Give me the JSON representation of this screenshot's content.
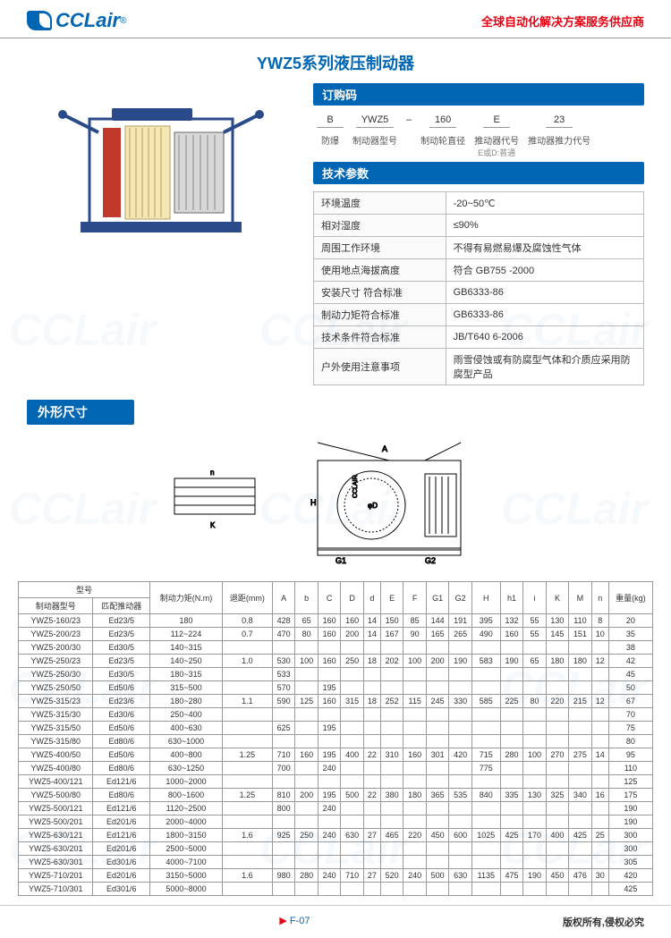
{
  "header": {
    "logo_text": "CCLair",
    "logo_r": "®",
    "tagline": "全球自动化解决方案服务供应商"
  },
  "main_title": "YWZ5系列液压制动器",
  "order_section": {
    "title": "订购码",
    "items": [
      {
        "code": "B",
        "label": "防爆",
        "sub": ""
      },
      {
        "code": "YWZ5",
        "label": "制动器型号",
        "sub": ""
      },
      {
        "code": "160",
        "label": "制动轮直径",
        "sub": ""
      },
      {
        "code": "E",
        "label": "推动器代号",
        "sub": "E或D:普通"
      },
      {
        "code": "23",
        "label": "推动器推力代号",
        "sub": ""
      }
    ],
    "dash": "–"
  },
  "spec_section": {
    "title": "技术参数",
    "rows": [
      {
        "k": "环境温度",
        "v": "-20~50℃"
      },
      {
        "k": "相对湿度",
        "v": "≤90%"
      },
      {
        "k": "周围工作环境",
        "v": "不得有易燃易爆及腐蚀性气体"
      },
      {
        "k": "使用地点海拔高度",
        "v": "符合 GB755 -2000"
      },
      {
        "k": "安装尺寸 符合标准",
        "v": "GB6333-86"
      },
      {
        "k": "制动力矩符合标准",
        "v": "GB6333-86"
      },
      {
        "k": "技术条件符合标准",
        "v": "JB/T640 6-2006"
      },
      {
        "k": "户外使用注意事项",
        "v": "雨雪侵蚀或有防腐型气体和介质应采用防腐型产品"
      }
    ]
  },
  "dims_title": "外形尺寸",
  "dim_table": {
    "header_group": "型号",
    "headers": [
      "制动器型号",
      "匹配推动器",
      "制动力矩(N.m)",
      "退距(mm)",
      "A",
      "b",
      "C",
      "D",
      "d",
      "E",
      "F",
      "G1",
      "G2",
      "H",
      "h1",
      "i",
      "K",
      "M",
      "n",
      "重量(kg)"
    ],
    "rows": [
      [
        "YWZ5-160/23",
        "Ed23/5",
        "180",
        "0.8",
        "428",
        "65",
        "160",
        "160",
        "14",
        "150",
        "85",
        "144",
        "191",
        "395",
        "132",
        "55",
        "130",
        "110",
        "8",
        "20"
      ],
      [
        "YWZ5-200/23",
        "Ed23/5",
        "112~224",
        "0.7",
        "470",
        "80",
        "160",
        "200",
        "14",
        "167",
        "90",
        "165",
        "265",
        "490",
        "160",
        "55",
        "145",
        "151",
        "10",
        "35"
      ],
      [
        "YWZ5-200/30",
        "Ed30/5",
        "140~315",
        "",
        "",
        "",
        "",
        "",
        "",
        "",
        "",
        "",
        "",
        "",
        "",
        "",
        "",
        "",
        "",
        "38"
      ],
      [
        "YWZ5-250/23",
        "Ed23/5",
        "140~250",
        "1.0",
        "530",
        "100",
        "160",
        "250",
        "18",
        "202",
        "100",
        "200",
        "190",
        "583",
        "190",
        "65",
        "180",
        "180",
        "12",
        "42"
      ],
      [
        "YWZ5-250/30",
        "Ed30/5",
        "180~315",
        "",
        "533",
        "",
        "",
        "",
        "",
        "",
        "",
        "",
        "",
        "",
        "",
        "",
        "",
        "",
        "",
        "45"
      ],
      [
        "YWZ5-250/50",
        "Ed50/6",
        "315~500",
        "",
        "570",
        "",
        "195",
        "",
        "",
        "",
        "",
        "",
        "",
        "",
        "",
        "",
        "",
        "",
        "",
        "50"
      ],
      [
        "YWZ5-315/23",
        "Ed23/6",
        "180~280",
        "1.1",
        "590",
        "125",
        "160",
        "315",
        "18",
        "252",
        "115",
        "245",
        "330",
        "585",
        "225",
        "80",
        "220",
        "215",
        "12",
        "67"
      ],
      [
        "YWZ5-315/30",
        "Ed30/6",
        "250~400",
        "",
        "",
        "",
        "",
        "",
        "",
        "",
        "",
        "",
        "",
        "",
        "",
        "",
        "",
        "",
        "",
        "70"
      ],
      [
        "YWZ5-315/50",
        "Ed50/6",
        "400~630",
        "",
        "625",
        "",
        "195",
        "",
        "",
        "",
        "",
        "",
        "",
        "",
        "",
        "",
        "",
        "",
        "",
        "75"
      ],
      [
        "YWZ5-315/80",
        "Ed80/6",
        "630~1000",
        "",
        "",
        "",
        "",
        "",
        "",
        "",
        "",
        "",
        "",
        "",
        "",
        "",
        "",
        "",
        "",
        "80"
      ],
      [
        "YWZ5-400/50",
        "Ed50/6",
        "400~800",
        "1.25",
        "710",
        "160",
        "195",
        "400",
        "22",
        "310",
        "160",
        "301",
        "420",
        "715",
        "280",
        "100",
        "270",
        "275",
        "14",
        "95"
      ],
      [
        "YWZ5-400/80",
        "Ed80/6",
        "630~1250",
        "",
        "700",
        "",
        "240",
        "",
        "",
        "",
        "",
        "",
        "",
        "775",
        "",
        "",
        "",
        "",
        "",
        "110"
      ],
      [
        "YWZ5-400/121",
        "Ed121/6",
        "1000~2000",
        "",
        "",
        "",
        "",
        "",
        "",
        "",
        "",
        "",
        "",
        "",
        "",
        "",
        "",
        "",
        "",
        "125"
      ],
      [
        "YWZ5-500/80",
        "Ed80/6",
        "800~1600",
        "1.25",
        "810",
        "200",
        "195",
        "500",
        "22",
        "380",
        "180",
        "365",
        "535",
        "840",
        "335",
        "130",
        "325",
        "340",
        "16",
        "175"
      ],
      [
        "YWZ5-500/121",
        "Ed121/6",
        "1120~2500",
        "",
        "800",
        "",
        "240",
        "",
        "",
        "",
        "",
        "",
        "",
        "",
        "",
        "",
        "",
        "",
        "",
        "190"
      ],
      [
        "YWZ5-500/201",
        "Ed201/6",
        "2000~4000",
        "",
        "",
        "",
        "",
        "",
        "",
        "",
        "",
        "",
        "",
        "",
        "",
        "",
        "",
        "",
        "",
        "190"
      ],
      [
        "YWZ5-630/121",
        "Ed121/6",
        "1800~3150",
        "1.6",
        "925",
        "250",
        "240",
        "630",
        "27",
        "465",
        "220",
        "450",
        "600",
        "1025",
        "425",
        "170",
        "400",
        "425",
        "25",
        "300"
      ],
      [
        "YWZ5-630/201",
        "Ed201/6",
        "2500~5000",
        "",
        "",
        "",
        "",
        "",
        "",
        "",
        "",
        "",
        "",
        "",
        "",
        "",
        "",
        "",
        "",
        "300"
      ],
      [
        "YWZ5-630/301",
        "Ed301/6",
        "4000~7100",
        "",
        "",
        "",
        "",
        "",
        "",
        "",
        "",
        "",
        "",
        "",
        "",
        "",
        "",
        "",
        "",
        "305"
      ],
      [
        "YWZ5-710/201",
        "Ed201/6",
        "3150~5000",
        "1.6",
        "980",
        "280",
        "240",
        "710",
        "27",
        "520",
        "240",
        "500",
        "630",
        "1135",
        "475",
        "190",
        "450",
        "476",
        "30",
        "420"
      ],
      [
        "YWZ5-710/301",
        "Ed301/6",
        "5000~8000",
        "",
        "",
        "",
        "",
        "",
        "",
        "",
        "",
        "",
        "",
        "",
        "",
        "",
        "",
        "",
        "",
        "425"
      ]
    ]
  },
  "footer": {
    "page_num": "F-07",
    "copyright": "版权所有,侵权必究"
  },
  "watermark": "CCLair"
}
